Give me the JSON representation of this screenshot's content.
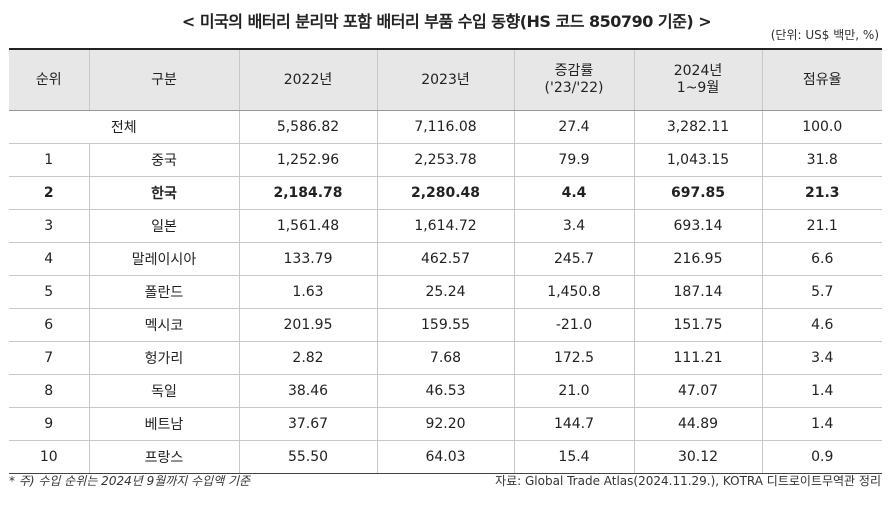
{
  "title": "< 미국의 배터리 분리막 포함 배터리 부품 수입 동향(HS 코드 850790 기준) >",
  "unit": "(단위: US$ 백만, %)",
  "headers": {
    "rank": "순위",
    "category": "구분",
    "y2022": "2022년",
    "y2023": "2023년",
    "change_l1": "증감률",
    "change_l2": "('23/'22)",
    "y2024_l1": "2024년",
    "y2024_l2": "1~9월",
    "share": "점유율"
  },
  "total": {
    "label": "전체",
    "y2022": "5,586.82",
    "y2023": "7,116.08",
    "change": "27.4",
    "y2024": "3,282.11",
    "share": "100.0"
  },
  "rows": [
    {
      "rank": "1",
      "country": "중국",
      "y2022": "1,252.96",
      "y2023": "2,253.78",
      "change": "79.9",
      "y2024": "1,043.15",
      "share": "31.8"
    },
    {
      "rank": "2",
      "country": "한국",
      "y2022": "2,184.78",
      "y2023": "2,280.48",
      "change": "4.4",
      "y2024": "697.85",
      "share": "21.3"
    },
    {
      "rank": "3",
      "country": "일본",
      "y2022": "1,561.48",
      "y2023": "1,614.72",
      "change": "3.4",
      "y2024": "693.14",
      "share": "21.1"
    },
    {
      "rank": "4",
      "country": "말레이시아",
      "y2022": "133.79",
      "y2023": "462.57",
      "change": "245.7",
      "y2024": "216.95",
      "share": "6.6"
    },
    {
      "rank": "5",
      "country": "폴란드",
      "y2022": "1.63",
      "y2023": "25.24",
      "change": "1,450.8",
      "y2024": "187.14",
      "share": "5.7"
    },
    {
      "rank": "6",
      "country": "멕시코",
      "y2022": "201.95",
      "y2023": "159.55",
      "change": "-21.0",
      "y2024": "151.75",
      "share": "4.6"
    },
    {
      "rank": "7",
      "country": "헝가리",
      "y2022": "2.82",
      "y2023": "7.68",
      "change": "172.5",
      "y2024": "111.21",
      "share": "3.4"
    },
    {
      "rank": "8",
      "country": "독일",
      "y2022": "38.46",
      "y2023": "46.53",
      "change": "21.0",
      "y2024": "47.07",
      "share": "1.4"
    },
    {
      "rank": "9",
      "country": "베트남",
      "y2022": "37.67",
      "y2023": "92.20",
      "change": "144.7",
      "y2024": "44.89",
      "share": "1.4"
    },
    {
      "rank": "10",
      "country": "프랑스",
      "y2022": "55.50",
      "y2023": "64.03",
      "change": "15.4",
      "y2024": "30.12",
      "share": "0.9"
    }
  ],
  "note": "* 주) 수입 순위는 2024년 9월까지 수입액 기준",
  "source": "자료: Global Trade Atlas(2024.11.29.), KOTRA 디트로이트무역관 정리"
}
